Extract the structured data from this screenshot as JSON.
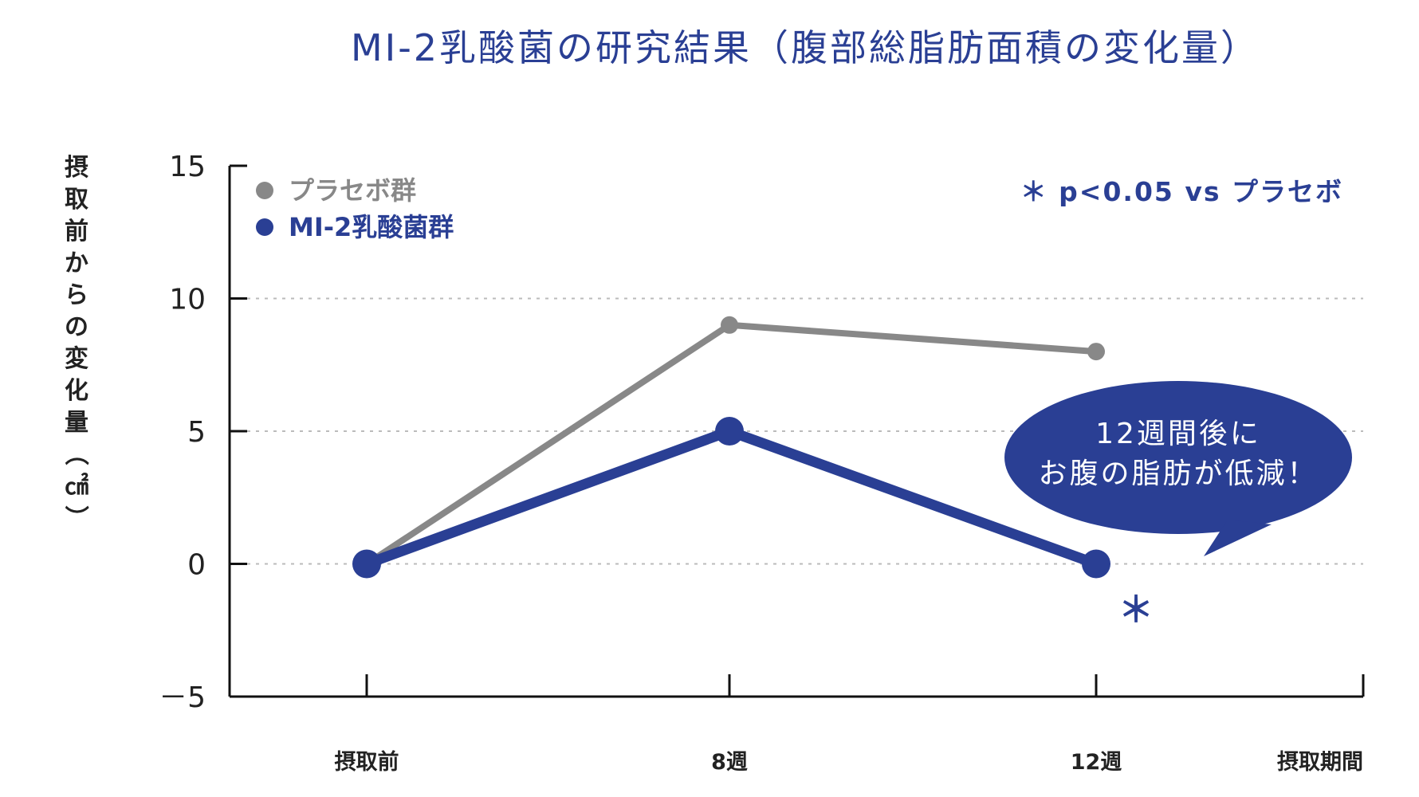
{
  "chart_data": {
    "type": "line",
    "title": "MI-2乳酸菌の研究結果（腹部総脂肪面積の変化量）",
    "ylabel": "摂取前からの変化量（㎠）",
    "xlabel": "摂取期間",
    "categories": [
      "摂取前",
      "8週",
      "12週"
    ],
    "ylim": [
      -5,
      15
    ],
    "yticks": [
      15,
      10,
      5,
      0,
      -5
    ],
    "ytick_labels": [
      "15",
      "10",
      "5",
      "0",
      "－5"
    ],
    "grid": "dotted horizontal",
    "legend_position": "top-left",
    "series": [
      {
        "name": "プラセボ群",
        "values": [
          0,
          9,
          8
        ],
        "color": "#888888"
      },
      {
        "name": "MI-2乳酸菌群",
        "values": [
          0,
          5,
          0
        ],
        "color": "#2a3f94"
      }
    ],
    "significance_note": "＊ p<0.05 vs プラセボ",
    "significance_marker": "＊",
    "callout_lines": [
      "12週間後に",
      "お腹の脂肪が低減！"
    ]
  }
}
